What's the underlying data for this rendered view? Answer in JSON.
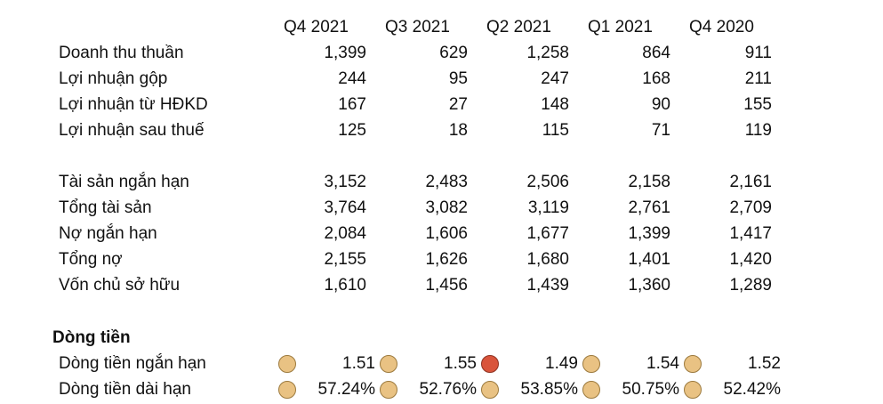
{
  "columns": [
    "Q4 2021",
    "Q3 2021",
    "Q2 2021",
    "Q1 2021",
    "Q4 2020"
  ],
  "income_rows": [
    {
      "label": "Doanh thu thuần",
      "values": [
        "1,399",
        "629",
        "1,258",
        "864",
        "911"
      ]
    },
    {
      "label": "Lợi nhuận gộp",
      "values": [
        "244",
        "95",
        "247",
        "168",
        "211"
      ]
    },
    {
      "label": "Lợi nhuận từ HĐKD",
      "values": [
        "167",
        "27",
        "148",
        "90",
        "155"
      ]
    },
    {
      "label": "Lợi nhuận sau thuế",
      "values": [
        "125",
        "18",
        "115",
        "71",
        "119"
      ]
    }
  ],
  "balance_rows": [
    {
      "label": "Tài sản ngắn hạn",
      "values": [
        "3,152",
        "2,483",
        "2,506",
        "2,158",
        "2,161"
      ]
    },
    {
      "label": "Tổng tài sản",
      "values": [
        "3,764",
        "3,082",
        "3,119",
        "2,761",
        "2,709"
      ]
    },
    {
      "label": "Nợ ngắn hạn",
      "values": [
        "2,084",
        "1,606",
        "1,677",
        "1,399",
        "1,417"
      ]
    },
    {
      "label": "Tổng nợ",
      "values": [
        "2,155",
        "1,626",
        "1,680",
        "1,401",
        "1,420"
      ]
    },
    {
      "label": "Vốn chủ sở hữu",
      "values": [
        "1,610",
        "1,456",
        "1,439",
        "1,360",
        "1,289"
      ]
    }
  ],
  "cashflow": {
    "title": "Dòng tiền",
    "rows": [
      {
        "label": "Dòng tiền ngắn hạn",
        "values": [
          "1.51",
          "1.55",
          "1.49",
          "1.54",
          "1.52"
        ],
        "indicators": [
          "neutral",
          "neutral",
          "bad",
          "neutral",
          "neutral"
        ]
      },
      {
        "label": "Dòng tiền dài hạn",
        "values": [
          "57.24%",
          "52.76%",
          "53.85%",
          "50.75%",
          "52.42%"
        ],
        "indicators": [
          "neutral",
          "neutral",
          "neutral",
          "neutral",
          "neutral"
        ]
      }
    ]
  },
  "colors": {
    "indicator_neutral": "#e9c283",
    "indicator_bad": "#d9543b"
  }
}
